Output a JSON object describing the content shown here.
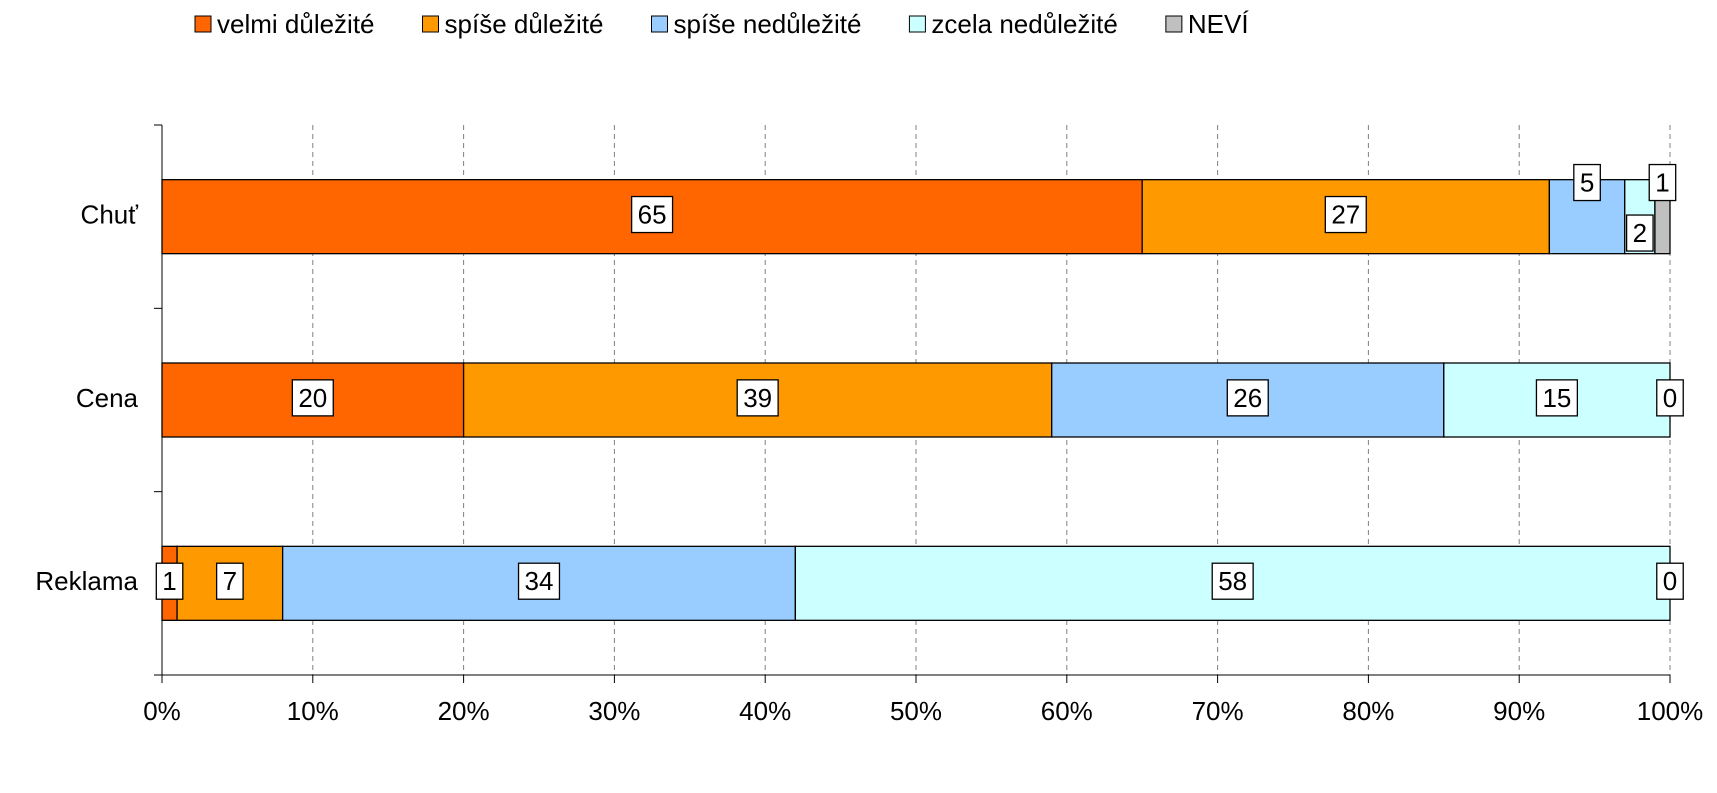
{
  "chart_data": {
    "type": "bar",
    "orientation": "horizontal",
    "stacked": true,
    "categories": [
      "Chuť",
      "Cena",
      "Reklama"
    ],
    "series": [
      {
        "name": "velmi důležité",
        "color": "#ff6600",
        "values": [
          65,
          20,
          1
        ]
      },
      {
        "name": "spíše důležité",
        "color": "#ff9900",
        "values": [
          27,
          39,
          7
        ]
      },
      {
        "name": "spíše nedůležité",
        "color": "#99ccff",
        "values": [
          5,
          26,
          34
        ]
      },
      {
        "name": "zcela nedůležité",
        "color": "#ccffff",
        "values": [
          2,
          15,
          58
        ]
      },
      {
        "name": "NEVÍ",
        "color": "#c0c0c0",
        "values": [
          1,
          0,
          0
        ]
      }
    ],
    "xlim": [
      0,
      100
    ],
    "xticks": [
      {
        "value": 0,
        "label": "0%"
      },
      {
        "value": 10,
        "label": "10%"
      },
      {
        "value": 20,
        "label": "20%"
      },
      {
        "value": 30,
        "label": "30%"
      },
      {
        "value": 40,
        "label": "40%"
      },
      {
        "value": 50,
        "label": "50%"
      },
      {
        "value": 60,
        "label": "60%"
      },
      {
        "value": 70,
        "label": "70%"
      },
      {
        "value": 80,
        "label": "80%"
      },
      {
        "value": 90,
        "label": "90%"
      },
      {
        "value": 100,
        "label": "100%"
      }
    ],
    "grid": true,
    "legend": "top"
  }
}
